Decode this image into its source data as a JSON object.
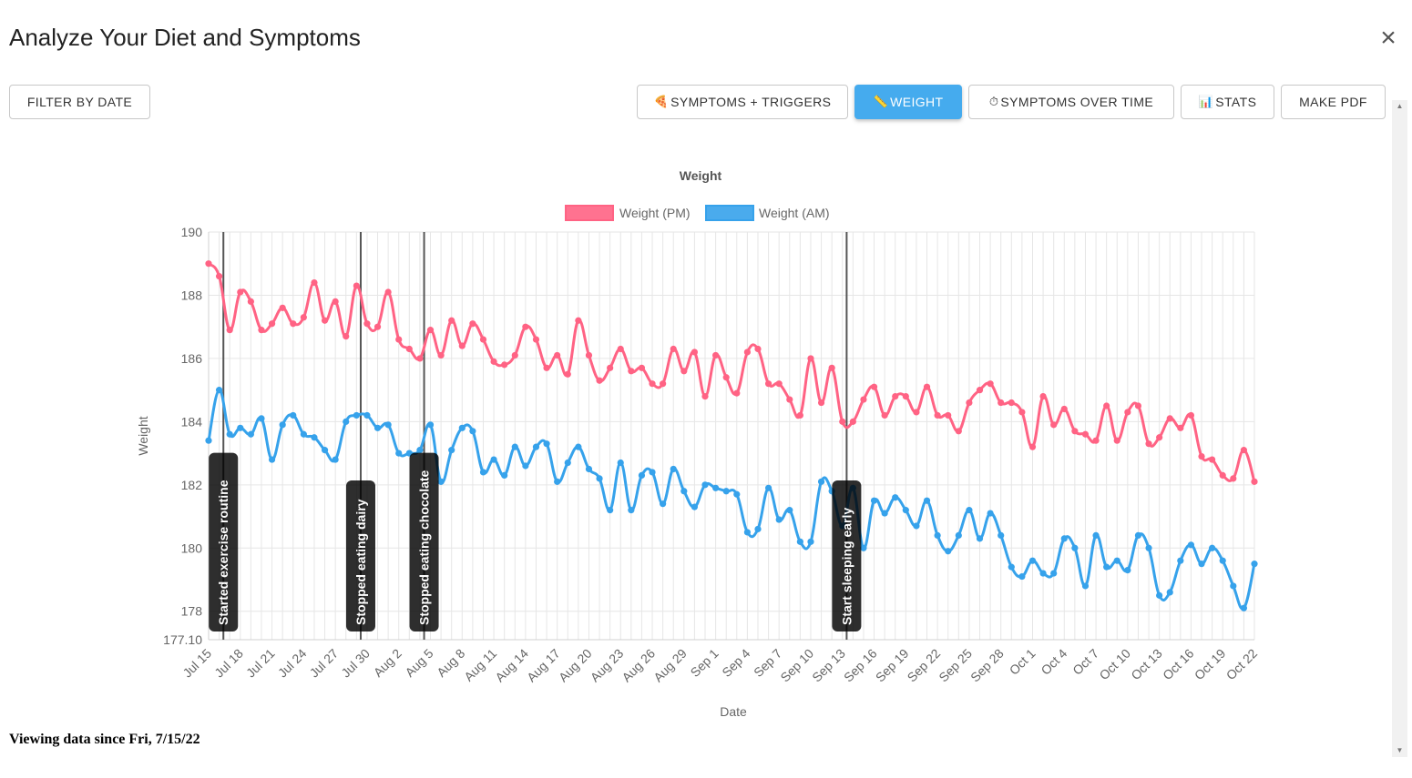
{
  "header": {
    "title": "Analyze Your Diet and Symptoms",
    "close_icon": "close-icon",
    "close_symbol": "×"
  },
  "toolbar": {
    "filter_label": "FILTER BY DATE",
    "symptoms_triggers": {
      "label": "SYMPTOMS + TRIGGERS",
      "icon": "🍕"
    },
    "weight": {
      "label": "WEIGHT",
      "icon": "📏"
    },
    "symptoms_over_time": {
      "label": "SYMPTOMS OVER TIME",
      "icon": "⏱"
    },
    "stats": {
      "label": "STATS",
      "icon": "📊"
    },
    "make_pdf_label": "MAKE PDF"
  },
  "footer": {
    "text": "Viewing data since Fri, 7/15/22"
  },
  "colors": {
    "pm": "#ff6384",
    "am": "#36a2eb",
    "active_button": "#45abee"
  },
  "chart_data": {
    "type": "line",
    "title": "Weight",
    "xlabel": "Date",
    "ylabel": "Weight",
    "ylim": [
      177.1,
      190
    ],
    "y_ticks": [
      "190",
      "188",
      "186",
      "184",
      "182",
      "180",
      "178",
      "177.10"
    ],
    "y_tick_values": [
      190,
      188,
      186,
      184,
      182,
      180,
      178,
      177.1
    ],
    "x_tick_labels": [
      "Jul 15",
      "Jul 18",
      "Jul 21",
      "Jul 24",
      "Jul 27",
      "Jul 30",
      "Aug 2",
      "Aug 5",
      "Aug 8",
      "Aug 11",
      "Aug 14",
      "Aug 17",
      "Aug 20",
      "Aug 23",
      "Aug 26",
      "Aug 29",
      "Sep 1",
      "Sep 4",
      "Sep 7",
      "Sep 10",
      "Sep 13",
      "Sep 16",
      "Sep 19",
      "Sep 22",
      "Sep 25",
      "Sep 28",
      "Oct 1",
      "Oct 4",
      "Oct 7",
      "Oct 10",
      "Oct 13",
      "Oct 16",
      "Oct 19",
      "Oct 22"
    ],
    "grid": true,
    "legend_position": "top",
    "series": [
      {
        "name": "Weight (PM)",
        "color": "#ff6384",
        "values": [
          189.0,
          188.6,
          186.9,
          188.1,
          187.8,
          186.9,
          187.1,
          187.6,
          187.1,
          187.3,
          188.4,
          187.2,
          187.8,
          186.7,
          188.3,
          187.1,
          187.0,
          188.1,
          186.6,
          186.3,
          186.0,
          186.9,
          186.1,
          187.2,
          186.4,
          187.1,
          186.6,
          185.9,
          185.8,
          186.1,
          187.0,
          186.6,
          185.7,
          186.1,
          185.5,
          187.2,
          186.1,
          185.3,
          185.7,
          186.3,
          185.6,
          185.7,
          185.2,
          185.2,
          186.3,
          185.6,
          186.2,
          184.8,
          186.1,
          185.4,
          184.9,
          186.2,
          186.3,
          185.2,
          185.2,
          184.7,
          184.2,
          186.0,
          184.6,
          185.7,
          184.0,
          184.0,
          184.7,
          185.1,
          184.2,
          184.8,
          184.8,
          184.3,
          185.1,
          184.2,
          184.2,
          183.7,
          184.6,
          185.0,
          185.2,
          184.6,
          184.6,
          184.3,
          183.2,
          184.8,
          183.9,
          184.4,
          183.7,
          183.6,
          183.4,
          184.5,
          183.4,
          184.3,
          184.5,
          183.3,
          183.5,
          184.1,
          183.8,
          184.2,
          182.9,
          182.8,
          182.3,
          182.2,
          183.1,
          182.1
        ]
      },
      {
        "name": "Weight (AM)",
        "color": "#36a2eb",
        "values": [
          183.4,
          185.0,
          183.6,
          183.8,
          183.6,
          184.1,
          182.8,
          183.9,
          184.2,
          183.6,
          183.5,
          183.1,
          182.8,
          184.0,
          184.2,
          184.2,
          183.8,
          183.9,
          183.0,
          183.0,
          183.1,
          183.9,
          182.1,
          183.1,
          183.8,
          183.7,
          182.4,
          182.8,
          182.3,
          183.2,
          182.6,
          183.2,
          183.3,
          182.1,
          182.7,
          183.2,
          182.5,
          182.2,
          181.2,
          182.7,
          181.2,
          182.3,
          182.4,
          181.4,
          182.5,
          181.8,
          181.3,
          182.0,
          181.9,
          181.8,
          181.7,
          180.5,
          180.6,
          181.9,
          180.9,
          181.2,
          180.2,
          180.2,
          182.1,
          181.8,
          180.7,
          181.9,
          180.0,
          181.5,
          181.1,
          181.6,
          181.2,
          180.7,
          181.5,
          180.4,
          179.9,
          180.4,
          181.2,
          180.3,
          181.1,
          180.4,
          179.4,
          179.1,
          179.6,
          179.2,
          179.2,
          180.3,
          180.0,
          178.8,
          180.4,
          179.4,
          179.6,
          179.3,
          180.4,
          180.0,
          178.5,
          178.6,
          179.6,
          180.1,
          179.5,
          180.0,
          179.6,
          178.8,
          178.1,
          179.5
        ]
      }
    ],
    "annotations": [
      {
        "label": "Started exercise routine",
        "index": 1.4
      },
      {
        "label": "Stopped eating dairy",
        "index": 14.4
      },
      {
        "label": "Stopped eating chocolate",
        "index": 20.4
      },
      {
        "label": "Start sleeping early",
        "index": 60.4
      }
    ]
  }
}
